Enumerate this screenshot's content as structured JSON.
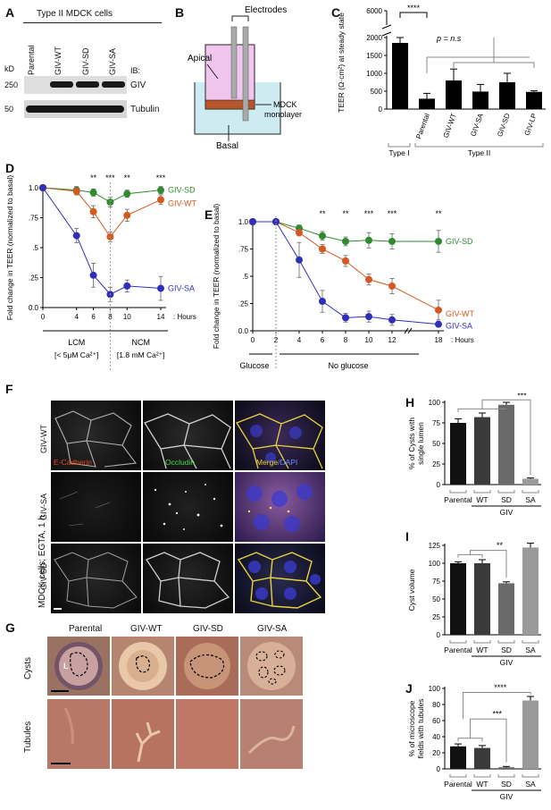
{
  "panels": {
    "A": "A",
    "B": "B",
    "C": "C",
    "D": "D",
    "E": "E",
    "F": "F",
    "G": "G",
    "H": "H",
    "I": "I",
    "J": "J"
  },
  "A": {
    "title": "Type II MDCK cells",
    "lanes": [
      "Parental",
      "GIV-WT",
      "GIV-SD",
      "GIV-SA"
    ],
    "kd": "kD",
    "ib": "IB:",
    "markers": [
      "250",
      "50"
    ],
    "proteins": [
      "GIV",
      "Tubulin"
    ]
  },
  "B": {
    "electrodes": "Electrodes",
    "apical": "Apical",
    "mdck": "MDCK",
    "monolayer": "monolayer",
    "basal": "Basal"
  },
  "F": {
    "side_label": "MDCK cells; EGTA, 1 h",
    "rows": [
      "GIV-WT",
      "GIV-SA",
      "GIV-SD"
    ],
    "stain1": "E-Cadherin",
    "stain2": "Occludin",
    "merge": "Merge",
    "dapi": "/DAPI"
  },
  "G": {
    "cols": [
      "Parental",
      "GIV-WT",
      "GIV-SD",
      "GIV-SA"
    ],
    "rows": [
      "Cysts",
      "Tubules"
    ],
    "lumen": "L"
  },
  "chart_data": [
    {
      "id": "C",
      "type": "bar",
      "ylabel": "TEER (Ω·cm²) at steady state",
      "yticks": [
        "0",
        "500",
        "1000",
        "1500",
        "2000",
        "6000"
      ],
      "categories": [
        "",
        "Parental",
        "GIV-WT",
        "GIV-SA",
        "GIV-SD",
        "GIV-LP"
      ],
      "values": [
        1850,
        290,
        800,
        490,
        750,
        480
      ],
      "errors": [
        250,
        150,
        320,
        200,
        250,
        30
      ],
      "group_labels": [
        "Type I",
        "Type II"
      ],
      "annotations": [
        "****",
        "p = n.s"
      ]
    },
    {
      "id": "D",
      "type": "line",
      "ylabel": "Fold change in TEER (normalized to basal)",
      "x": [
        0,
        4,
        6,
        8,
        10,
        14
      ],
      "xticks": [
        "0",
        "4",
        "6",
        "8",
        "10",
        "14"
      ],
      "xunit": ": Hours",
      "yticks": [
        "1.0",
        ".75",
        ".5",
        ".25",
        "0.0"
      ],
      "ylim": [
        0,
        1
      ],
      "series": [
        {
          "name": "GIV-SD",
          "color": "#2e8b2e",
          "values": [
            1.0,
            0.98,
            0.96,
            0.88,
            0.95,
            0.98
          ],
          "errors": [
            0.02,
            0.03,
            0.03,
            0.04,
            0.03,
            0.03
          ]
        },
        {
          "name": "GIV-WT",
          "color": "#d4581f",
          "values": [
            1.0,
            0.97,
            0.8,
            0.59,
            0.77,
            0.9
          ],
          "errors": [
            0.02,
            0.03,
            0.05,
            0.04,
            0.05,
            0.04
          ]
        },
        {
          "name": "GIV-SA",
          "color": "#2f2fb8",
          "values": [
            1.0,
            0.6,
            0.27,
            0.11,
            0.18,
            0.16
          ],
          "errors": [
            0.02,
            0.06,
            0.1,
            0.06,
            0.05,
            0.1
          ]
        }
      ],
      "significance": [
        "**",
        "***",
        "**",
        "***"
      ],
      "conditions": [
        {
          "label": "LCM",
          "sub": "[< 5μM Ca²⁺]"
        },
        {
          "label": "NCM",
          "sub": "[1.8 mM Ca²⁺]"
        }
      ]
    },
    {
      "id": "E",
      "type": "line",
      "ylabel": "Fold change in TEER (normalized to basal)",
      "x": [
        0,
        2,
        4,
        6,
        8,
        10,
        12,
        18
      ],
      "xticks": [
        "0",
        "2",
        "4",
        "6",
        "8",
        "10",
        "12",
        "18"
      ],
      "xunit": ": Hours",
      "yticks": [
        "1.0",
        ".75",
        ".5",
        ".25",
        "0.0"
      ],
      "ylim": [
        0,
        1
      ],
      "series": [
        {
          "name": "GIV-SD",
          "color": "#2e8b2e",
          "values": [
            1.0,
            1.0,
            0.94,
            0.87,
            0.82,
            0.83,
            0.82,
            0.82
          ],
          "errors": [
            0.01,
            0.01,
            0.03,
            0.04,
            0.04,
            0.07,
            0.07,
            0.1
          ]
        },
        {
          "name": "GIV-WT",
          "color": "#d4581f",
          "values": [
            1.0,
            1.0,
            0.9,
            0.75,
            0.64,
            0.47,
            0.41,
            0.19
          ],
          "errors": [
            0.01,
            0.01,
            0.03,
            0.04,
            0.05,
            0.05,
            0.07,
            0.09
          ]
        },
        {
          "name": "GIV-SA",
          "color": "#2f2fb8",
          "values": [
            1.0,
            1.0,
            0.65,
            0.27,
            0.12,
            0.13,
            0.1,
            0.06
          ],
          "errors": [
            0.01,
            0.01,
            0.16,
            0.1,
            0.04,
            0.05,
            0.05,
            0.02
          ]
        }
      ],
      "significance": [
        "**",
        "**",
        "***",
        "***",
        "**"
      ],
      "conditions": [
        {
          "label": "Glucose"
        },
        {
          "label": "No glucose"
        }
      ]
    },
    {
      "id": "H",
      "type": "bar",
      "ylabel": "% of Cysts with single lumen",
      "yticks": [
        "0",
        "25",
        "50",
        "75",
        "100"
      ],
      "ylim": [
        0,
        100
      ],
      "categories": [
        "Parental",
        "WT",
        "SD",
        "SA"
      ],
      "values": [
        75,
        82,
        97,
        7
      ],
      "errors": [
        5,
        5,
        3,
        1
      ],
      "colors": [
        "#111111",
        "#3a3a3a",
        "#6a6a6a",
        "#9a9a9a"
      ],
      "group_label": "GIV",
      "significance": "***"
    },
    {
      "id": "I",
      "type": "bar",
      "ylabel": "Cyst volume",
      "yticks": [
        "0",
        "25",
        "50",
        "75",
        "100",
        "125"
      ],
      "ylim": [
        0,
        125
      ],
      "categories": [
        "Parental",
        "WT",
        "SD",
        "SA"
      ],
      "values": [
        100,
        100,
        72,
        122
      ],
      "errors": [
        2,
        5,
        2,
        6
      ],
      "colors": [
        "#111111",
        "#3a3a3a",
        "#6a6a6a",
        "#9a9a9a"
      ],
      "group_label": "GIV",
      "significance": "**"
    },
    {
      "id": "J",
      "type": "bar",
      "ylabel": "% of microscope fields with tubules",
      "yticks": [
        "0",
        "20",
        "40",
        "60",
        "80",
        "100"
      ],
      "ylim": [
        0,
        100
      ],
      "categories": [
        "Parental",
        "WT",
        "SD",
        "SA"
      ],
      "values": [
        28,
        26,
        2,
        85
      ],
      "errors": [
        3,
        3,
        1,
        5
      ],
      "colors": [
        "#111111",
        "#3a3a3a",
        "#6a6a6a",
        "#9a9a9a"
      ],
      "group_label": "GIV",
      "significance": [
        "***",
        "****"
      ]
    }
  ]
}
